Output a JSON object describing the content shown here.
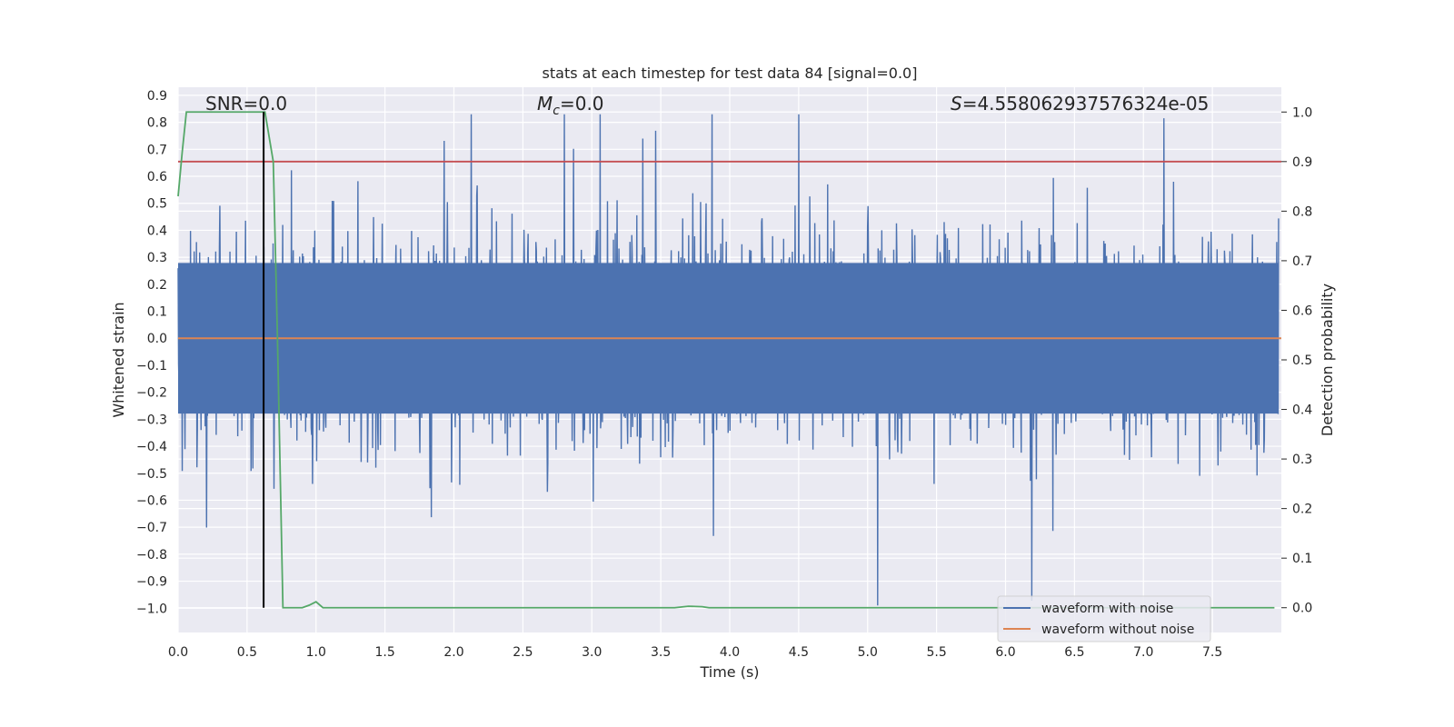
{
  "chart_data": {
    "type": "line",
    "title": "stats at each timestep for test data 84 [signal=0.0]",
    "xlabel": "Time (s)",
    "ylabel": "Whitened strain",
    "y2label": "Detection probability",
    "xlim": [
      0.0,
      8.0
    ],
    "ylim": [
      -1.09,
      0.93
    ],
    "y2lim": [
      -0.05,
      1.05
    ],
    "xticks": [
      "0.0",
      "0.5",
      "1.0",
      "1.5",
      "2.0",
      "2.5",
      "3.0",
      "3.5",
      "4.0",
      "4.5",
      "5.0",
      "5.5",
      "6.0",
      "6.5",
      "7.0",
      "7.5"
    ],
    "yticks": [
      "0.9",
      "0.8",
      "0.7",
      "0.6",
      "0.5",
      "0.4",
      "0.3",
      "0.2",
      "0.1",
      "0.0",
      "−0.1",
      "−0.2",
      "−0.3",
      "−0.4",
      "−0.5",
      "−0.6",
      "−0.7",
      "−0.8",
      "−0.9",
      "−1.0"
    ],
    "y2ticks": [
      "1.0",
      "0.9",
      "0.8",
      "0.7",
      "0.6",
      "0.5",
      "0.4",
      "0.3",
      "0.2",
      "0.1",
      "0.0"
    ],
    "annotations": {
      "snr": "SNR=0.0",
      "mc_symbol": "M",
      "mc_sub": "c",
      "mc_value": "=0.0",
      "s_symbol": "S",
      "s_value": "=4.558062937576324e-05"
    },
    "series": [
      {
        "name": "waveform with noise",
        "color": "#4c72b0",
        "kind": "noise",
        "approx_envelope": [
          -0.45,
          0.45
        ],
        "approx_peak_max": 0.83,
        "approx_peak_min": -0.99
      },
      {
        "name": "waveform without noise",
        "color": "#dd8452",
        "y": [
          0.0,
          0.0
        ],
        "x": [
          0.0,
          8.0
        ]
      },
      {
        "color": "#55a868",
        "axis": "y2",
        "label": "detection probability",
        "x": [
          0.0,
          0.03,
          0.06,
          0.1,
          0.2,
          0.4,
          0.6,
          0.63,
          0.66,
          0.69,
          0.72,
          0.76,
          0.9,
          0.95,
          1.0,
          1.05,
          1.1,
          2.0,
          3.0,
          3.6,
          3.7,
          3.8,
          3.85,
          4.0,
          5.0,
          6.0,
          7.0,
          7.95
        ],
        "y": [
          0.83,
          0.92,
          1.0,
          1.0,
          1.0,
          1.0,
          1.0,
          1.0,
          0.95,
          0.9,
          0.55,
          0.0,
          0.0,
          0.005,
          0.012,
          0.0,
          0.0,
          0.0,
          0.0,
          0.0,
          0.003,
          0.002,
          0.0,
          0.0,
          0.0,
          0.0,
          0.0,
          0.0
        ]
      },
      {
        "color": "#c44e52",
        "axis": "y2",
        "label": "threshold",
        "y": [
          0.9,
          0.9
        ],
        "x": [
          0.0,
          8.0
        ]
      },
      {
        "color": "#000000",
        "label": "marker",
        "x": [
          0.62,
          0.62
        ],
        "y2": [
          0.0,
          1.0
        ]
      }
    ],
    "legend": {
      "placement": "lower-right",
      "entries": [
        "waveform with noise",
        "waveform without noise"
      ]
    },
    "grid": true,
    "colors": {
      "background": "#eaeaf2",
      "grid": "#ffffff",
      "noise": "#4c72b0",
      "clean": "#dd8452",
      "prob": "#55a868",
      "threshold": "#c44e52",
      "marker": "#000000"
    }
  }
}
